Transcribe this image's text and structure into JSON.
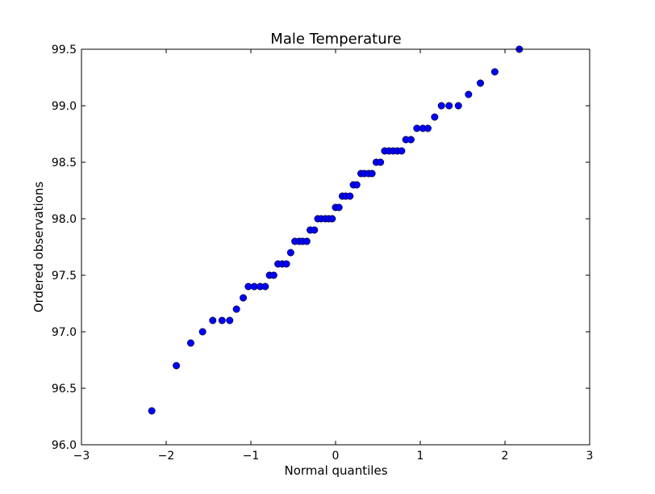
{
  "chart_data": {
    "type": "scatter",
    "title": "Male Temperature",
    "xlabel": "Normal quantiles",
    "ylabel": "Ordered observations",
    "xlim": [
      -3,
      3
    ],
    "ylim": [
      96.0,
      99.5
    ],
    "xticks": [
      "−3",
      "−2",
      "−1",
      "0",
      "1",
      "2",
      "3"
    ],
    "yticks": [
      "96.0",
      "96.5",
      "97.0",
      "97.5",
      "98.0",
      "98.5",
      "99.0",
      "99.5"
    ],
    "grid": false,
    "marker_color": "#0000ff",
    "marker_edge_color": "#000000",
    "series": [
      {
        "x": [
          -2.17,
          -1.88,
          -1.71,
          -1.57,
          -1.45,
          -1.34,
          -1.25,
          -1.17,
          -1.09,
          -1.03,
          -0.96,
          -0.89,
          -0.83,
          -0.78,
          -0.73,
          -0.68,
          -0.63,
          -0.58,
          -0.53,
          -0.48,
          -0.43,
          -0.39,
          -0.34,
          -0.3,
          -0.25,
          -0.21,
          -0.17,
          -0.12,
          -0.08,
          -0.04,
          0.0,
          0.04,
          0.08,
          0.12,
          0.17,
          0.21,
          0.25,
          0.3,
          0.34,
          0.39,
          0.43,
          0.48,
          0.53,
          0.58,
          0.63,
          0.68,
          0.73,
          0.78,
          0.83,
          0.89,
          0.96,
          1.03,
          1.09,
          1.17,
          1.25,
          1.34,
          1.45,
          1.57,
          1.71,
          1.88,
          2.17
        ],
        "y": [
          96.3,
          96.7,
          96.9,
          97.0,
          97.1,
          97.1,
          97.1,
          97.2,
          97.3,
          97.4,
          97.4,
          97.4,
          97.4,
          97.5,
          97.5,
          97.6,
          97.6,
          97.6,
          97.7,
          97.8,
          97.8,
          97.8,
          97.8,
          97.9,
          97.9,
          98.0,
          98.0,
          98.0,
          98.0,
          98.0,
          98.1,
          98.1,
          98.2,
          98.2,
          98.2,
          98.3,
          98.3,
          98.4,
          98.4,
          98.4,
          98.4,
          98.5,
          98.5,
          98.6,
          98.6,
          98.6,
          98.6,
          98.6,
          98.7,
          98.7,
          98.8,
          98.8,
          98.8,
          98.9,
          99.0,
          99.0,
          99.0,
          99.1,
          99.2,
          99.3,
          99.5
        ]
      }
    ]
  }
}
